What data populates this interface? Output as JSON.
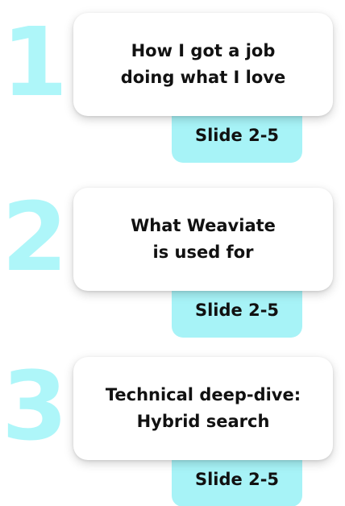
{
  "steps": [
    {
      "number": "1",
      "title": "How I got a job\ndoing what I love",
      "slide_label": "Slide 2-5"
    },
    {
      "number": "2",
      "title": "What Weaviate\nis used for",
      "slide_label": "Slide 2-5"
    },
    {
      "number": "3",
      "title": "Technical deep-dive:\nHybrid search",
      "slide_label": "Slide 2-5"
    }
  ],
  "colors": {
    "number": "#aef6f9",
    "tag_background": "#a7f3f7",
    "card_background": "#ffffff",
    "text": "#111111"
  }
}
